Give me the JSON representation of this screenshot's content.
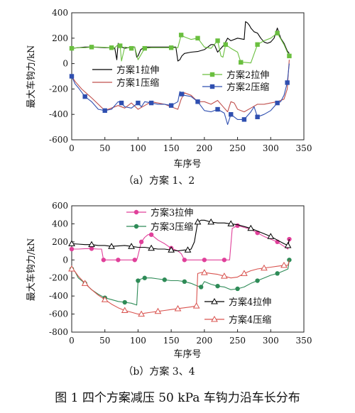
{
  "figure_caption": "图 1  四个方案减压 50 kPa 车钩力沿车长分布",
  "chart_data": [
    {
      "type": "line",
      "caption": "（a）方案 1、2",
      "xlabel": "车序号",
      "ylabel": "最大车钩力/kN",
      "xlim": [
        0,
        350
      ],
      "ylim": [
        -600,
        400
      ],
      "xticks": [
        0,
        50,
        100,
        150,
        200,
        250,
        300,
        350
      ],
      "yticks": [
        -600,
        -400,
        -200,
        0,
        200,
        400
      ],
      "grid": false,
      "legend": "inside-middle",
      "series": [
        {
          "name": "方案1拉伸",
          "color": "#000000",
          "marker": "none",
          "x": [
            0,
            10,
            20,
            30,
            40,
            50,
            60,
            65,
            68,
            70,
            73,
            76,
            80,
            90,
            95,
            98,
            100,
            104,
            110,
            120,
            140,
            157,
            160,
            163,
            166,
            170,
            180,
            190,
            200,
            210,
            215,
            220,
            225,
            230,
            235,
            240,
            250,
            260,
            262,
            265,
            268,
            270,
            275,
            280,
            285,
            290,
            295,
            300,
            305,
            310,
            315,
            320,
            325,
            328
          ],
          "y": [
            120,
            125,
            130,
            130,
            128,
            125,
            125,
            120,
            30,
            160,
            140,
            130,
            120,
            130,
            130,
            50,
            60,
            110,
            130,
            130,
            130,
            130,
            20,
            30,
            60,
            80,
            90,
            95,
            110,
            150,
            150,
            90,
            120,
            150,
            200,
            180,
            200,
            190,
            330,
            320,
            300,
            280,
            250,
            240,
            200,
            170,
            160,
            170,
            200,
            280,
            200,
            160,
            100,
            80
          ]
        },
        {
          "name": "方案1压缩",
          "color": "#c0504d",
          "marker": "none",
          "x": [
            0,
            5,
            15,
            30,
            50,
            70,
            80,
            90,
            100,
            110,
            120,
            140,
            150,
            160,
            165,
            170,
            180,
            190,
            200,
            210,
            220,
            230,
            235,
            240,
            245,
            250,
            260,
            270,
            280,
            290,
            300,
            310,
            320,
            325,
            328
          ],
          "y": [
            -100,
            -140,
            -200,
            -270,
            -370,
            -330,
            -350,
            -310,
            -360,
            -330,
            -300,
            -320,
            -340,
            -360,
            -280,
            -230,
            -250,
            -300,
            -300,
            -320,
            -290,
            -350,
            -380,
            -300,
            -310,
            -360,
            -380,
            -350,
            -320,
            -320,
            -310,
            -300,
            -280,
            -200,
            30
          ]
        },
        {
          "name": "方案2拉伸",
          "color": "#6abf3f",
          "marker": "square",
          "x": [
            0,
            10,
            20,
            30,
            40,
            50,
            60,
            65,
            70,
            73,
            75,
            80,
            90,
            95,
            100,
            110,
            120,
            140,
            150,
            155,
            160,
            165,
            170,
            180,
            190,
            200,
            210,
            220,
            225,
            228,
            232,
            240,
            250,
            255,
            260,
            270,
            280,
            290,
            300,
            310,
            320,
            325,
            328
          ],
          "y": [
            120,
            125,
            125,
            130,
            130,
            128,
            125,
            125,
            150,
            140,
            20,
            130,
            120,
            130,
            30,
            120,
            125,
            125,
            125,
            125,
            125,
            225,
            210,
            190,
            200,
            130,
            120,
            180,
            60,
            50,
            150,
            120,
            90,
            10,
            10,
            5,
            150,
            180,
            200,
            240,
            150,
            90,
            60
          ]
        },
        {
          "name": "方案2压缩",
          "color": "#2f4fb0",
          "marker": "square",
          "x": [
            0,
            5,
            10,
            20,
            30,
            40,
            50,
            60,
            70,
            75,
            80,
            90,
            100,
            105,
            110,
            120,
            130,
            140,
            150,
            160,
            163,
            166,
            170,
            180,
            190,
            200,
            210,
            220,
            230,
            235,
            240,
            245,
            250,
            260,
            270,
            275,
            280,
            290,
            300,
            310,
            315,
            320,
            325,
            328
          ],
          "y": [
            -100,
            -160,
            -190,
            -260,
            -300,
            -360,
            -370,
            -360,
            -300,
            -310,
            -340,
            -350,
            -310,
            -340,
            -300,
            -310,
            -320,
            -320,
            -330,
            -300,
            -220,
            -240,
            -250,
            -260,
            -300,
            -370,
            -380,
            -360,
            -390,
            -480,
            -400,
            -420,
            -440,
            -440,
            -380,
            -340,
            -420,
            -400,
            -370,
            -310,
            -300,
            -250,
            -150,
            0
          ]
        }
      ],
      "legend_entries": [
        "方案1拉伸",
        "方案1压缩",
        "方案2拉伸",
        "方案2压缩"
      ]
    },
    {
      "type": "line",
      "caption": "（b）方案 3、4",
      "xlabel": "车序号",
      "ylabel": "最大车钩力/kN",
      "xlim": [
        0,
        350
      ],
      "ylim": [
        -800,
        600
      ],
      "xticks": [
        0,
        50,
        100,
        150,
        200,
        250,
        300,
        350
      ],
      "yticks": [
        -800,
        -600,
        -400,
        -200,
        0,
        200,
        400,
        600
      ],
      "grid": false,
      "legend": "inside-top-left and inside-bottom-right",
      "series": [
        {
          "name": "方案3拉伸",
          "color": "#e0409a",
          "marker": "circle",
          "x": [
            0,
            10,
            20,
            30,
            40,
            45,
            48,
            50,
            60,
            70,
            80,
            90,
            95,
            98,
            100,
            105,
            110,
            115,
            120,
            130,
            140,
            150,
            160,
            165,
            170,
            180,
            190,
            200,
            210,
            220,
            230,
            238,
            242,
            250,
            260,
            270,
            280,
            290,
            300,
            310,
            320,
            326,
            328
          ],
          "y": [
            120,
            120,
            125,
            125,
            120,
            120,
            0,
            0,
            0,
            0,
            0,
            0,
            0,
            0,
            50,
            200,
            250,
            280,
            280,
            220,
            180,
            130,
            100,
            70,
            0,
            0,
            0,
            0,
            0,
            0,
            0,
            0,
            350,
            380,
            360,
            340,
            300,
            260,
            230,
            200,
            150,
            120,
            230
          ]
        },
        {
          "name": "方案3压缩",
          "color": "#2e8b57",
          "marker": "circle",
          "x": [
            0,
            5,
            10,
            20,
            30,
            40,
            50,
            60,
            70,
            80,
            90,
            98,
            100,
            102,
            105,
            110,
            120,
            130,
            140,
            150,
            160,
            170,
            180,
            190,
            195,
            200,
            210,
            220,
            230,
            240,
            250,
            260,
            270,
            280,
            290,
            300,
            310,
            320,
            326,
            328
          ],
          "y": [
            -100,
            -130,
            -200,
            -260,
            -330,
            -380,
            -420,
            -440,
            -460,
            -470,
            -480,
            -500,
            -230,
            -220,
            -210,
            -200,
            -200,
            -210,
            -220,
            -230,
            -230,
            -240,
            -260,
            -290,
            -300,
            -240,
            -270,
            -290,
            -300,
            -330,
            -320,
            -300,
            -260,
            -230,
            -200,
            -170,
            -150,
            -120,
            -100,
            0
          ]
        },
        {
          "name": "方案4拉伸",
          "color": "#000000",
          "marker": "triangle",
          "x": [
            0,
            10,
            20,
            30,
            40,
            50,
            60,
            70,
            80,
            90,
            100,
            110,
            120,
            130,
            140,
            150,
            160,
            170,
            175,
            180,
            185,
            190,
            195,
            200,
            210,
            220,
            230,
            240,
            250,
            260,
            270,
            280,
            290,
            300,
            310,
            320,
            326,
            328
          ],
          "y": [
            180,
            175,
            170,
            170,
            160,
            160,
            150,
            155,
            160,
            150,
            140,
            140,
            130,
            120,
            120,
            110,
            100,
            110,
            110,
            120,
            200,
            420,
            440,
            440,
            420,
            410,
            410,
            400,
            390,
            370,
            350,
            320,
            290,
            260,
            220,
            180,
            160,
            230
          ]
        },
        {
          "name": "方案4压缩",
          "color": "#d9534f",
          "marker": "triangle",
          "x": [
            0,
            5,
            10,
            20,
            30,
            40,
            50,
            60,
            70,
            80,
            90,
            100,
            105,
            110,
            120,
            130,
            140,
            150,
            160,
            170,
            180,
            188,
            190,
            195,
            200,
            210,
            220,
            230,
            240,
            250,
            260,
            270,
            280,
            290,
            300,
            310,
            320,
            326,
            328
          ],
          "y": [
            -100,
            -130,
            -180,
            -260,
            -330,
            -390,
            -440,
            -490,
            -530,
            -560,
            -580,
            -600,
            -600,
            -590,
            -580,
            -570,
            -560,
            -550,
            -540,
            -530,
            -520,
            -510,
            -150,
            -140,
            -140,
            -150,
            -160,
            -180,
            -200,
            -190,
            -150,
            -120,
            -100,
            -90,
            -80,
            -70,
            -60,
            -60,
            0
          ]
        }
      ],
      "legend_entries": [
        "方案3拉伸",
        "方案3压缩",
        "方案4拉伸",
        "方案4压缩"
      ]
    }
  ]
}
